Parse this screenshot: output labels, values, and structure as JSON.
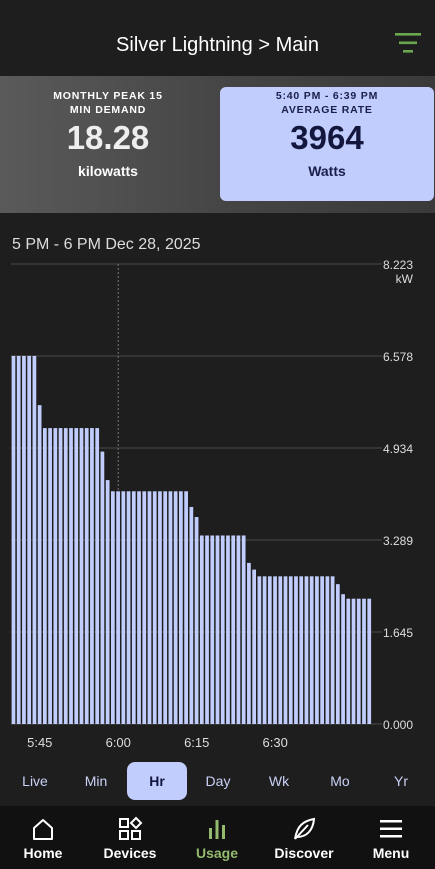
{
  "header": {
    "title": "Silver Lightning > Main",
    "menu_icon": "filter-lines-icon",
    "icon_color": "#6aa84f"
  },
  "peak_card": {
    "label": "MONTHLY PEAK 15 MIN DEMAND",
    "value": "18.28",
    "unit": "kilowatts"
  },
  "rate_card": {
    "time_range": "5:40 PM - 6:39 PM",
    "label": "AVERAGE RATE",
    "value": "3964",
    "unit": "Watts",
    "color": "#c1cdfd"
  },
  "range_label": "5 PM - 6 PM Dec 28, 2025",
  "chart_data": {
    "type": "bar",
    "bar_color": "#c1cdfd",
    "y_unit": "kW",
    "ylim": [
      0,
      8.223
    ],
    "y_ticks": [
      "8.223",
      "6.578",
      "4.934",
      "3.289",
      "1.645",
      "0.000"
    ],
    "x_ticks": [
      "5:45",
      "6:00",
      "6:15",
      "6:30"
    ],
    "x_tick_minutes": [
      5,
      20,
      35,
      50
    ],
    "cursor_minute": 20,
    "grid": true,
    "values": [
      6.58,
      6.58,
      6.58,
      6.58,
      6.58,
      5.7,
      5.29,
      5.29,
      5.29,
      5.29,
      5.29,
      5.29,
      5.29,
      5.29,
      5.29,
      5.29,
      5.29,
      4.87,
      4.36,
      4.16,
      4.16,
      4.16,
      4.16,
      4.16,
      4.16,
      4.16,
      4.16,
      4.16,
      4.16,
      4.16,
      4.16,
      4.16,
      4.16,
      4.16,
      3.88,
      3.7,
      3.37,
      3.37,
      3.37,
      3.37,
      3.37,
      3.37,
      3.37,
      3.37,
      3.37,
      2.88,
      2.76,
      2.64,
      2.64,
      2.64,
      2.64,
      2.64,
      2.64,
      2.64,
      2.64,
      2.64,
      2.64,
      2.64,
      2.64,
      2.64,
      2.64,
      2.64,
      2.5,
      2.32,
      2.24,
      2.24,
      2.24,
      2.24,
      2.24
    ]
  },
  "periods": {
    "items": [
      {
        "key": "live",
        "label": "Live"
      },
      {
        "key": "min",
        "label": "Min"
      },
      {
        "key": "hr",
        "label": "Hr"
      },
      {
        "key": "day",
        "label": "Day"
      },
      {
        "key": "wk",
        "label": "Wk"
      },
      {
        "key": "mo",
        "label": "Mo"
      },
      {
        "key": "yr",
        "label": "Yr"
      }
    ],
    "selected": "Hr"
  },
  "nav": {
    "items": [
      {
        "key": "home",
        "label": "Home",
        "icon": "home-icon"
      },
      {
        "key": "devices",
        "label": "Devices",
        "icon": "devices-icon"
      },
      {
        "key": "usage",
        "label": "Usage",
        "icon": "bar-chart-icon"
      },
      {
        "key": "discover",
        "label": "Discover",
        "icon": "leaf-icon"
      },
      {
        "key": "menu",
        "label": "Menu",
        "icon": "hamburger-menu-icon"
      }
    ],
    "active": "Usage",
    "active_color": "#93ba6e"
  }
}
